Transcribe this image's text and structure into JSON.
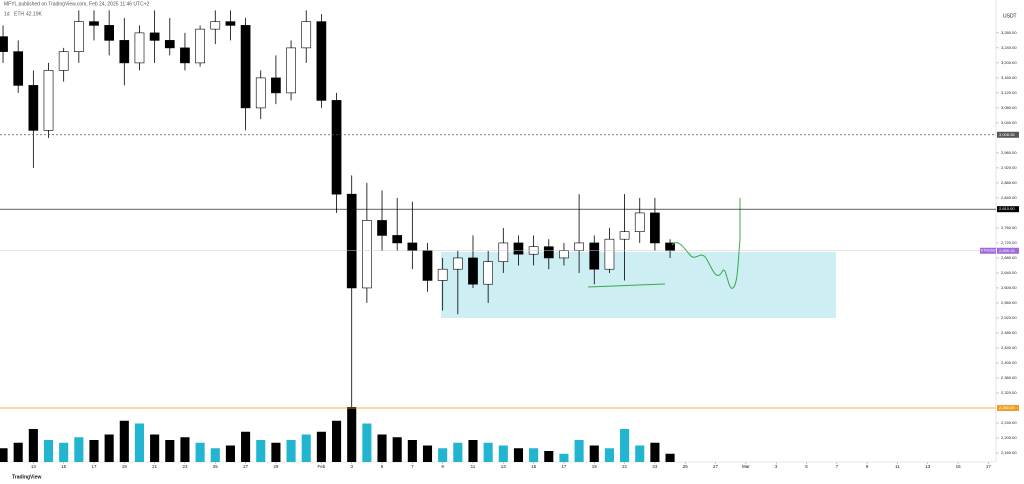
{
  "header": {
    "publisher": "MFYL published on TradingView.com, Feb 24, 2025 11:46 UTC+2",
    "interval": "1d",
    "symbol": "ETH",
    "volume_text": "42.19K",
    "currency": "USDT",
    "logo": "TradingView"
  },
  "chart_data": {
    "type": "candlestick",
    "x": [
      11,
      12,
      13,
      14,
      15,
      16,
      17,
      18,
      19,
      20,
      21,
      22,
      23,
      24,
      25,
      26,
      27,
      28,
      29,
      30,
      31,
      32,
      33,
      34,
      35,
      36,
      37,
      38,
      39,
      40,
      41,
      42,
      43,
      44,
      45,
      46,
      47,
      48,
      49,
      50,
      51,
      52,
      53,
      54,
      55
    ],
    "open": [
      3270,
      3230,
      3140,
      3020,
      3180,
      3230,
      3310,
      3300,
      3260,
      3200,
      3280,
      3260,
      3240,
      3200,
      3290,
      3310,
      3300,
      3080,
      3160,
      3120,
      3240,
      3310,
      3100,
      2850,
      2600,
      2780,
      2740,
      2720,
      2700,
      2620,
      2650,
      2680,
      2610,
      2670,
      2720,
      2690,
      2710,
      2680,
      2700,
      2720,
      2650,
      2730,
      2750,
      2800,
      2720
    ],
    "high": [
      3300,
      3260,
      3180,
      3200,
      3240,
      3340,
      3340,
      3340,
      3320,
      3300,
      3340,
      3320,
      3280,
      3300,
      3340,
      3340,
      3320,
      3180,
      3220,
      3260,
      3340,
      3330,
      3120,
      2900,
      2880,
      2860,
      2840,
      2830,
      2720,
      2680,
      2700,
      2740,
      2700,
      2760,
      2740,
      2740,
      2730,
      2720,
      2850,
      2740,
      2760,
      2850,
      2840,
      2840,
      2730
    ],
    "low": [
      3200,
      3120,
      2920,
      3000,
      3150,
      3200,
      3260,
      3220,
      3140,
      3180,
      3200,
      3220,
      3180,
      3190,
      3250,
      3260,
      3020,
      3050,
      3090,
      3100,
      3200,
      3080,
      2800,
      2140,
      2560,
      2700,
      2700,
      2650,
      2590,
      2540,
      2530,
      2600,
      2560,
      2640,
      2660,
      2660,
      2650,
      2660,
      2640,
      2610,
      2640,
      2620,
      2720,
      2700,
      2680
    ],
    "close": [
      3230,
      3140,
      3020,
      3180,
      3230,
      3310,
      3300,
      3260,
      3200,
      3280,
      3260,
      3240,
      3200,
      3290,
      3310,
      3300,
      3080,
      3160,
      3120,
      3240,
      3310,
      3100,
      2850,
      2600,
      2780,
      2740,
      2720,
      2700,
      2620,
      2650,
      2680,
      2610,
      2670,
      2720,
      2690,
      2710,
      2680,
      2700,
      2720,
      2650,
      2730,
      2750,
      2800,
      2720,
      2699.15
    ],
    "volume": [
      25,
      35,
      60,
      40,
      35,
      45,
      40,
      50,
      75,
      70,
      50,
      40,
      45,
      35,
      25,
      30,
      55,
      40,
      35,
      40,
      50,
      55,
      75,
      100,
      70,
      50,
      45,
      40,
      30,
      25,
      35,
      40,
      35,
      30,
      25,
      25,
      20,
      15,
      40,
      30,
      25,
      60,
      30,
      35,
      15
    ],
    "up_color": "#ffffff",
    "down_color": "#000000",
    "volume_up_color": "#22b5d0",
    "volume_down_color": "#000000",
    "xlim": [
      10.8,
      76.5
    ],
    "ylim": [
      2136,
      3341
    ],
    "xticks": [
      13,
      15,
      17,
      19,
      21,
      23,
      25,
      27,
      29,
      {
        "value": 32,
        "label": "Feb"
      },
      {
        "value": 34,
        "label": "3"
      },
      {
        "value": 36,
        "label": "5"
      },
      {
        "value": 38,
        "label": "7"
      },
      {
        "value": 40,
        "label": "9"
      },
      {
        "value": 42,
        "label": "11"
      },
      {
        "value": 44,
        "label": "13"
      },
      {
        "value": 46,
        "label": "15"
      },
      {
        "value": 48,
        "label": "17"
      },
      {
        "value": 50,
        "label": "19"
      },
      {
        "value": 52,
        "label": "21"
      },
      {
        "value": 54,
        "label": "23"
      },
      {
        "value": 56,
        "label": "25"
      },
      {
        "value": 58,
        "label": "27"
      },
      {
        "value": 60,
        "label": "Mar"
      },
      {
        "value": 62,
        "label": "3"
      },
      {
        "value": 64,
        "label": "5"
      },
      {
        "value": 66,
        "label": "7"
      },
      {
        "value": 68,
        "label": "9"
      },
      {
        "value": 70,
        "label": "11"
      },
      {
        "value": 72,
        "label": "13"
      },
      {
        "value": 74,
        "label": "15"
      },
      {
        "value": 76,
        "label": "17"
      }
    ],
    "yticks": [
      {
        "value": 2160,
        "label": "2,160.00"
      },
      {
        "value": 2200,
        "label": "2,200.00"
      },
      {
        "value": 2240,
        "label": "2,240.00"
      },
      {
        "value": 2320,
        "label": "2,320.00"
      },
      {
        "value": 2360,
        "label": "2,360.00"
      },
      {
        "value": 2400,
        "label": "2,400.00"
      },
      {
        "value": 2440,
        "label": "2,440.00"
      },
      {
        "value": 2480,
        "label": "2,480.00"
      },
      {
        "value": 2520,
        "label": "2,520.00"
      },
      {
        "value": 2560,
        "label": "2,560.00"
      },
      {
        "value": 2600,
        "label": "2,600.00"
      },
      {
        "value": 2640,
        "label": "2,640.00"
      },
      {
        "value": 2680,
        "label": "2,680.00"
      },
      {
        "value": 2720,
        "label": "2,720.00"
      },
      {
        "value": 2760,
        "label": "2,760.00"
      },
      {
        "value": 2840,
        "label": "2,840.00"
      },
      {
        "value": 2880,
        "label": "2,880.00"
      },
      {
        "value": 2920,
        "label": "2,920.00"
      },
      {
        "value": 2960,
        "label": "2,960.00"
      },
      {
        "value": 3040,
        "label": "3,040.00"
      },
      {
        "value": 3080,
        "label": "3,080.00"
      },
      {
        "value": 3120,
        "label": "3,120.00"
      },
      {
        "value": 3160,
        "label": "3,160.00"
      },
      {
        "value": 3200,
        "label": "3,200.00"
      },
      {
        "value": 3240,
        "label": "3,240.00"
      },
      {
        "value": 3280,
        "label": "3,280.00"
      }
    ],
    "price_lines": [
      {
        "value": 3008.36,
        "label": "3,008.36",
        "color": "#555555",
        "dashed": true
      },
      {
        "value": 2810,
        "label": "2,810.00",
        "color": "#000000",
        "dashed": false
      },
      {
        "value": 2280,
        "label": "2,280.00",
        "color": "#f0a020",
        "dashed": false
      }
    ],
    "current_price": {
      "value": 2699.15,
      "label": "2,699.15",
      "symbol": "ETHUSDT",
      "color": "#9c6ade"
    }
  }
}
